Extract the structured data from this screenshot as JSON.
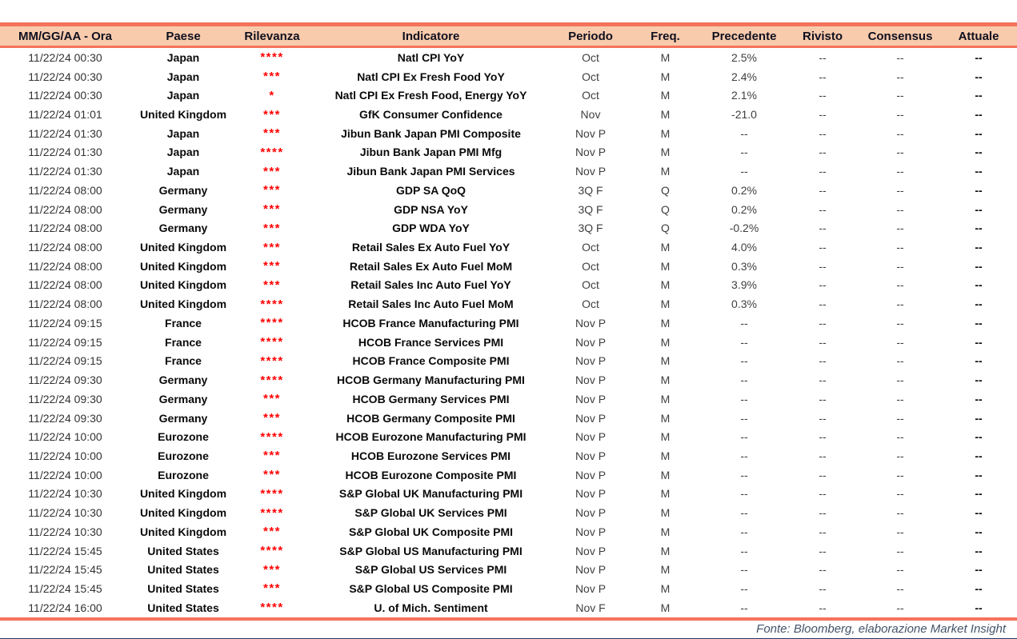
{
  "table": {
    "columns": [
      {
        "key": "datetime",
        "label": "MM/GG/AA - Ora"
      },
      {
        "key": "country",
        "label": "Paese"
      },
      {
        "key": "relevance",
        "label": "Rilevanza"
      },
      {
        "key": "indicator",
        "label": "Indicatore"
      },
      {
        "key": "period",
        "label": "Periodo"
      },
      {
        "key": "freq",
        "label": "Freq."
      },
      {
        "key": "previous",
        "label": "Precedente"
      },
      {
        "key": "revised",
        "label": "Rivisto"
      },
      {
        "key": "consensus",
        "label": "Consensus"
      },
      {
        "key": "actual",
        "label": "Attuale"
      }
    ],
    "rows": [
      {
        "datetime": "11/22/24 00:30",
        "country": "Japan",
        "relevance": 4,
        "indicator": "Natl CPI YoY",
        "period": "Oct",
        "freq": "M",
        "previous": "2.5%",
        "revised": "--",
        "consensus": "--",
        "actual": "--"
      },
      {
        "datetime": "11/22/24 00:30",
        "country": "Japan",
        "relevance": 3,
        "indicator": "Natl CPI Ex Fresh Food YoY",
        "period": "Oct",
        "freq": "M",
        "previous": "2.4%",
        "revised": "--",
        "consensus": "--",
        "actual": "--"
      },
      {
        "datetime": "11/22/24 00:30",
        "country": "Japan",
        "relevance": 1,
        "indicator": "Natl CPI Ex Fresh Food, Energy YoY",
        "period": "Oct",
        "freq": "M",
        "previous": "2.1%",
        "revised": "--",
        "consensus": "--",
        "actual": "--"
      },
      {
        "datetime": "11/22/24 01:01",
        "country": "United Kingdom",
        "relevance": 3,
        "indicator": "GfK Consumer Confidence",
        "period": "Nov",
        "freq": "M",
        "previous": "-21.0",
        "revised": "--",
        "consensus": "--",
        "actual": "--"
      },
      {
        "datetime": "11/22/24 01:30",
        "country": "Japan",
        "relevance": 3,
        "indicator": "Jibun Bank Japan PMI Composite",
        "period": "Nov P",
        "freq": "M",
        "previous": "--",
        "revised": "--",
        "consensus": "--",
        "actual": "--"
      },
      {
        "datetime": "11/22/24 01:30",
        "country": "Japan",
        "relevance": 4,
        "indicator": "Jibun Bank Japan PMI Mfg",
        "period": "Nov P",
        "freq": "M",
        "previous": "--",
        "revised": "--",
        "consensus": "--",
        "actual": "--"
      },
      {
        "datetime": "11/22/24 01:30",
        "country": "Japan",
        "relevance": 3,
        "indicator": "Jibun Bank Japan PMI Services",
        "period": "Nov P",
        "freq": "M",
        "previous": "--",
        "revised": "--",
        "consensus": "--",
        "actual": "--"
      },
      {
        "datetime": "11/22/24 08:00",
        "country": "Germany",
        "relevance": 3,
        "indicator": "GDP SA QoQ",
        "period": "3Q F",
        "freq": "Q",
        "previous": "0.2%",
        "revised": "--",
        "consensus": "--",
        "actual": "--"
      },
      {
        "datetime": "11/22/24 08:00",
        "country": "Germany",
        "relevance": 3,
        "indicator": "GDP NSA YoY",
        "period": "3Q F",
        "freq": "Q",
        "previous": "0.2%",
        "revised": "--",
        "consensus": "--",
        "actual": "--"
      },
      {
        "datetime": "11/22/24 08:00",
        "country": "Germany",
        "relevance": 3,
        "indicator": "GDP WDA YoY",
        "period": "3Q F",
        "freq": "Q",
        "previous": "-0.2%",
        "revised": "--",
        "consensus": "--",
        "actual": "--"
      },
      {
        "datetime": "11/22/24 08:00",
        "country": "United Kingdom",
        "relevance": 3,
        "indicator": "Retail Sales Ex Auto Fuel YoY",
        "period": "Oct",
        "freq": "M",
        "previous": "4.0%",
        "revised": "--",
        "consensus": "--",
        "actual": "--"
      },
      {
        "datetime": "11/22/24 08:00",
        "country": "United Kingdom",
        "relevance": 3,
        "indicator": "Retail Sales Ex Auto Fuel MoM",
        "period": "Oct",
        "freq": "M",
        "previous": "0.3%",
        "revised": "--",
        "consensus": "--",
        "actual": "--"
      },
      {
        "datetime": "11/22/24 08:00",
        "country": "United Kingdom",
        "relevance": 3,
        "indicator": "Retail Sales Inc Auto Fuel YoY",
        "period": "Oct",
        "freq": "M",
        "previous": "3.9%",
        "revised": "--",
        "consensus": "--",
        "actual": "--"
      },
      {
        "datetime": "11/22/24 08:00",
        "country": "United Kingdom",
        "relevance": 4,
        "indicator": "Retail Sales Inc Auto Fuel MoM",
        "period": "Oct",
        "freq": "M",
        "previous": "0.3%",
        "revised": "--",
        "consensus": "--",
        "actual": "--"
      },
      {
        "datetime": "11/22/24 09:15",
        "country": "France",
        "relevance": 4,
        "indicator": "HCOB France Manufacturing PMI",
        "period": "Nov P",
        "freq": "M",
        "previous": "--",
        "revised": "--",
        "consensus": "--",
        "actual": "--"
      },
      {
        "datetime": "11/22/24 09:15",
        "country": "France",
        "relevance": 4,
        "indicator": "HCOB France Services PMI",
        "period": "Nov P",
        "freq": "M",
        "previous": "--",
        "revised": "--",
        "consensus": "--",
        "actual": "--"
      },
      {
        "datetime": "11/22/24 09:15",
        "country": "France",
        "relevance": 4,
        "indicator": "HCOB France Composite PMI",
        "period": "Nov P",
        "freq": "M",
        "previous": "--",
        "revised": "--",
        "consensus": "--",
        "actual": "--"
      },
      {
        "datetime": "11/22/24 09:30",
        "country": "Germany",
        "relevance": 4,
        "indicator": "HCOB Germany Manufacturing PMI",
        "period": "Nov P",
        "freq": "M",
        "previous": "--",
        "revised": "--",
        "consensus": "--",
        "actual": "--"
      },
      {
        "datetime": "11/22/24 09:30",
        "country": "Germany",
        "relevance": 3,
        "indicator": "HCOB Germany Services PMI",
        "period": "Nov P",
        "freq": "M",
        "previous": "--",
        "revised": "--",
        "consensus": "--",
        "actual": "--"
      },
      {
        "datetime": "11/22/24 09:30",
        "country": "Germany",
        "relevance": 3,
        "indicator": "HCOB Germany Composite PMI",
        "period": "Nov P",
        "freq": "M",
        "previous": "--",
        "revised": "--",
        "consensus": "--",
        "actual": "--"
      },
      {
        "datetime": "11/22/24 10:00",
        "country": "Eurozone",
        "relevance": 4,
        "indicator": "HCOB Eurozone Manufacturing PMI",
        "period": "Nov P",
        "freq": "M",
        "previous": "--",
        "revised": "--",
        "consensus": "--",
        "actual": "--"
      },
      {
        "datetime": "11/22/24 10:00",
        "country": "Eurozone",
        "relevance": 3,
        "indicator": "HCOB Eurozone Services PMI",
        "period": "Nov P",
        "freq": "M",
        "previous": "--",
        "revised": "--",
        "consensus": "--",
        "actual": "--"
      },
      {
        "datetime": "11/22/24 10:00",
        "country": "Eurozone",
        "relevance": 3,
        "indicator": "HCOB Eurozone Composite PMI",
        "period": "Nov P",
        "freq": "M",
        "previous": "--",
        "revised": "--",
        "consensus": "--",
        "actual": "--"
      },
      {
        "datetime": "11/22/24 10:30",
        "country": "United Kingdom",
        "relevance": 4,
        "indicator": "S&P Global UK Manufacturing PMI",
        "period": "Nov P",
        "freq": "M",
        "previous": "--",
        "revised": "--",
        "consensus": "--",
        "actual": "--"
      },
      {
        "datetime": "11/22/24 10:30",
        "country": "United Kingdom",
        "relevance": 4,
        "indicator": "S&P Global UK Services PMI",
        "period": "Nov P",
        "freq": "M",
        "previous": "--",
        "revised": "--",
        "consensus": "--",
        "actual": "--"
      },
      {
        "datetime": "11/22/24 10:30",
        "country": "United Kingdom",
        "relevance": 3,
        "indicator": "S&P Global UK Composite PMI",
        "period": "Nov P",
        "freq": "M",
        "previous": "--",
        "revised": "--",
        "consensus": "--",
        "actual": "--"
      },
      {
        "datetime": "11/22/24 15:45",
        "country": "United States",
        "relevance": 4,
        "indicator": "S&P Global US Manufacturing PMI",
        "period": "Nov P",
        "freq": "M",
        "previous": "--",
        "revised": "--",
        "consensus": "--",
        "actual": "--"
      },
      {
        "datetime": "11/22/24 15:45",
        "country": "United States",
        "relevance": 3,
        "indicator": "S&P Global US Services PMI",
        "period": "Nov P",
        "freq": "M",
        "previous": "--",
        "revised": "--",
        "consensus": "--",
        "actual": "--"
      },
      {
        "datetime": "11/22/24 15:45",
        "country": "United States",
        "relevance": 3,
        "indicator": "S&P Global US Composite PMI",
        "period": "Nov P",
        "freq": "M",
        "previous": "--",
        "revised": "--",
        "consensus": "--",
        "actual": "--"
      },
      {
        "datetime": "11/22/24 16:00",
        "country": "United States",
        "relevance": 4,
        "indicator": "U. of Mich. Sentiment",
        "period": "Nov F",
        "freq": "M",
        "previous": "--",
        "revised": "--",
        "consensus": "--",
        "actual": "--"
      }
    ]
  },
  "footer": {
    "source_label": "Fonte: Bloomberg, elaborazione Market Insight"
  },
  "colors": {
    "header_background": "#F8CBAD",
    "table_border_accent": "#F4735B",
    "relevance_star": "#FF0000",
    "footer_text": "#44546A",
    "bottom_rule": "#1F3864"
  }
}
